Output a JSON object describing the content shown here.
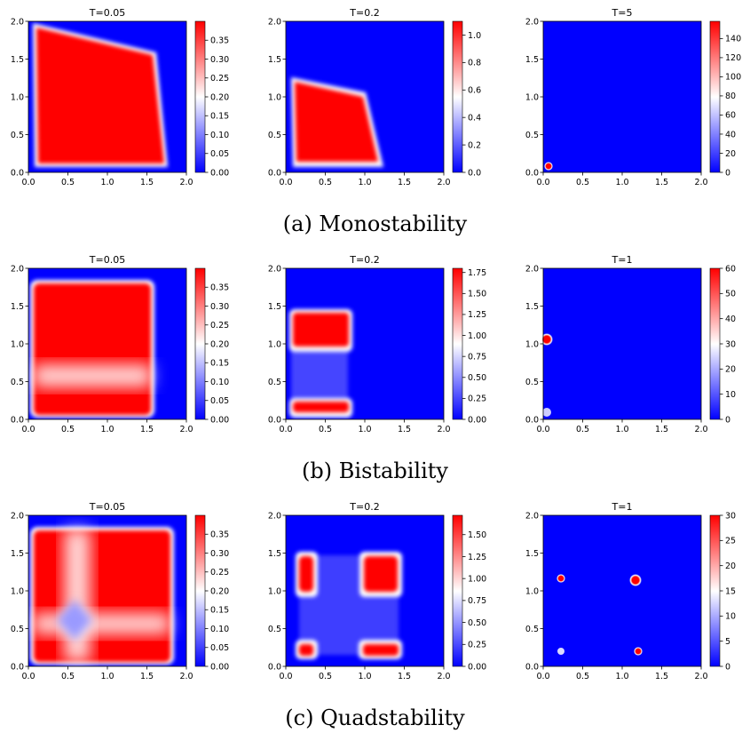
{
  "colors": {
    "cmap": [
      "#0000ff",
      "#ffffff",
      "#ff0000"
    ],
    "axis": "#000000"
  },
  "rows": [
    {
      "caption": "(a) Monostability",
      "panels": [
        {
          "title": "T=0.05",
          "cbar_ticks": [
            "0.00",
            "0.05",
            "0.10",
            "0.15",
            "0.20",
            "0.25",
            "0.30",
            "0.35"
          ],
          "cbar_values": [
            0,
            0.05,
            0.1,
            0.15,
            0.2,
            0.25,
            0.3,
            0.35
          ],
          "vmax": 0.4
        },
        {
          "title": "T=0.2",
          "cbar_ticks": [
            "0.0",
            "0.2",
            "0.4",
            "0.6",
            "0.8",
            "1.0"
          ],
          "cbar_values": [
            0,
            0.2,
            0.4,
            0.6,
            0.8,
            1.0
          ],
          "vmax": 1.1
        },
        {
          "title": "T=5",
          "cbar_ticks": [
            "0",
            "20",
            "40",
            "60",
            "80",
            "100",
            "120",
            "140"
          ],
          "cbar_values": [
            0,
            20,
            40,
            60,
            80,
            100,
            120,
            140
          ],
          "vmax": 158
        }
      ]
    },
    {
      "caption": "(b) Bistability",
      "panels": [
        {
          "title": "T=0.05",
          "cbar_ticks": [
            "0.00",
            "0.05",
            "0.10",
            "0.15",
            "0.20",
            "0.25",
            "0.30",
            "0.35"
          ],
          "cbar_values": [
            0,
            0.05,
            0.1,
            0.15,
            0.2,
            0.25,
            0.3,
            0.35
          ],
          "vmax": 0.4
        },
        {
          "title": "T=0.2",
          "cbar_ticks": [
            "0.00",
            "0.25",
            "0.50",
            "0.75",
            "1.00",
            "1.25",
            "1.50",
            "1.75"
          ],
          "cbar_values": [
            0,
            0.25,
            0.5,
            0.75,
            1.0,
            1.25,
            1.5,
            1.75
          ],
          "vmax": 1.8
        },
        {
          "title": "T=1",
          "cbar_ticks": [
            "0",
            "10",
            "20",
            "30",
            "40",
            "50",
            "60"
          ],
          "cbar_values": [
            0,
            10,
            20,
            30,
            40,
            50,
            60
          ],
          "vmax": 60
        }
      ]
    },
    {
      "caption": "(c) Quadstability",
      "panels": [
        {
          "title": "T=0.05",
          "cbar_ticks": [
            "0.00",
            "0.05",
            "0.10",
            "0.15",
            "0.20",
            "0.25",
            "0.30",
            "0.35"
          ],
          "cbar_values": [
            0,
            0.05,
            0.1,
            0.15,
            0.2,
            0.25,
            0.3,
            0.35
          ],
          "vmax": 0.4
        },
        {
          "title": "T=0.2",
          "cbar_ticks": [
            "0.00",
            "0.25",
            "0.50",
            "0.75",
            "1.00",
            "1.25",
            "1.50"
          ],
          "cbar_values": [
            0,
            0.25,
            0.5,
            0.75,
            1.0,
            1.25,
            1.5
          ],
          "vmax": 1.72
        },
        {
          "title": "T=1",
          "cbar_ticks": [
            "0",
            "5",
            "10",
            "15",
            "20",
            "25",
            "30"
          ],
          "cbar_values": [
            0,
            5,
            10,
            15,
            20,
            25,
            30
          ],
          "vmax": 30
        }
      ]
    }
  ],
  "chart_data": [
    {
      "type": "heatmap",
      "title": "T=0.05",
      "xlim": [
        0,
        2
      ],
      "ylim": [
        0,
        2
      ],
      "xticks": [
        "0.0",
        "0.5",
        "1.0",
        "1.5",
        "2.0"
      ],
      "yticks": [
        "0.0",
        "0.5",
        "1.0",
        "1.5",
        "2.0"
      ],
      "colorbar_range": [
        0,
        0.4
      ],
      "high_region": {
        "shape": "quadrilateral",
        "corners": [
          [
            0.05,
            1.75
          ],
          [
            1.6,
            1.62
          ],
          [
            1.75,
            0.05
          ],
          [
            0.08,
            0.08
          ]
        ],
        "value": 0.38
      }
    },
    {
      "type": "heatmap",
      "title": "T=0.2",
      "xlim": [
        0,
        2
      ],
      "ylim": [
        0,
        2
      ],
      "xticks": [
        "0.0",
        "0.5",
        "1.0",
        "1.5",
        "2.0"
      ],
      "yticks": [
        "0.0",
        "0.5",
        "1.0",
        "1.5",
        "2.0"
      ],
      "colorbar_range": [
        0,
        1.1
      ],
      "high_region": {
        "shape": "quadrilateral",
        "corners": [
          [
            0.08,
            1.25
          ],
          [
            1.0,
            1.05
          ],
          [
            1.2,
            0.08
          ],
          [
            0.1,
            0.08
          ]
        ],
        "value": 1.05
      }
    },
    {
      "type": "heatmap",
      "title": "T=5",
      "xlim": [
        0,
        2
      ],
      "ylim": [
        0,
        2
      ],
      "xticks": [
        "0.0",
        "0.5",
        "1.0",
        "1.5",
        "2.0"
      ],
      "yticks": [
        "0.0",
        "0.5",
        "1.0",
        "1.5",
        "2.0"
      ],
      "colorbar_range": [
        0,
        158
      ],
      "spots": [
        {
          "x": 0.07,
          "y": 0.08,
          "r": 0.05,
          "value": 155
        }
      ]
    },
    {
      "type": "heatmap",
      "title": "T=0.05",
      "xlim": [
        0,
        2
      ],
      "ylim": [
        0,
        2
      ],
      "xticks": [
        "0.0",
        "0.5",
        "1.0",
        "1.5",
        "2.0"
      ],
      "yticks": [
        "0.0",
        "0.5",
        "1.0",
        "1.5",
        "2.0"
      ],
      "colorbar_range": [
        0,
        0.4
      ],
      "high_region": {
        "shape": "rect",
        "x": [
          0.05,
          1.58
        ],
        "y": [
          0.05,
          1.8
        ],
        "value": 0.38
      },
      "low_band": {
        "y": [
          0.45,
          0.72
        ],
        "value": 0.2
      }
    },
    {
      "type": "heatmap",
      "title": "T=0.2",
      "xlim": [
        0,
        2
      ],
      "ylim": [
        0,
        2
      ],
      "xticks": [
        "0.0",
        "0.5",
        "1.0",
        "1.5",
        "2.0"
      ],
      "yticks": [
        "0.0",
        "0.5",
        "1.0",
        "1.5",
        "2.0"
      ],
      "colorbar_range": [
        0,
        1.8
      ],
      "high_regions": [
        {
          "x": [
            0.08,
            0.78
          ],
          "y": [
            0.95,
            1.42
          ],
          "value": 1.75
        },
        {
          "x": [
            0.08,
            0.78
          ],
          "y": [
            0.06,
            0.28
          ],
          "value": 1.75
        }
      ],
      "faint_region": {
        "x": [
          0.08,
          0.78
        ],
        "y": [
          0.28,
          0.95
        ],
        "value": 0.35
      }
    },
    {
      "type": "heatmap",
      "title": "T=1",
      "xlim": [
        0,
        2
      ],
      "ylim": [
        0,
        2
      ],
      "xticks": [
        "0.0",
        "0.5",
        "1.0",
        "1.5",
        "2.0"
      ],
      "yticks": [
        "0.0",
        "0.5",
        "1.0",
        "1.5",
        "2.0"
      ],
      "colorbar_range": [
        0,
        60
      ],
      "spots": [
        {
          "x": 0.05,
          "y": 1.06,
          "r": 0.07,
          "value": 60
        },
        {
          "x": 0.05,
          "y": 0.1,
          "r": 0.05,
          "value": 30
        }
      ]
    },
    {
      "type": "heatmap",
      "title": "T=0.05",
      "xlim": [
        0,
        2
      ],
      "ylim": [
        0,
        2
      ],
      "xticks": [
        "0.0",
        "0.5",
        "1.0",
        "1.5",
        "2.0"
      ],
      "yticks": [
        "0.0",
        "0.5",
        "1.0",
        "1.5",
        "2.0"
      ],
      "colorbar_range": [
        0,
        0.4
      ],
      "high_region": {
        "shape": "rect",
        "x": [
          0.05,
          1.85
        ],
        "y": [
          0.05,
          1.82
        ],
        "value": 0.38
      },
      "low_band_x": {
        "x": [
          0.45,
          0.8
        ],
        "value": 0.2
      },
      "low_band_y": {
        "y": [
          0.45,
          0.72
        ],
        "value": 0.2
      },
      "low_spot": {
        "x": 0.6,
        "y": 0.6,
        "value": 0.1
      }
    },
    {
      "type": "heatmap",
      "title": "T=0.2",
      "xlim": [
        0,
        2
      ],
      "ylim": [
        0,
        2
      ],
      "xticks": [
        "0.0",
        "0.5",
        "1.0",
        "1.5",
        "2.0"
      ],
      "yticks": [
        "0.0",
        "0.5",
        "1.0",
        "1.5",
        "2.0"
      ],
      "colorbar_range": [
        0,
        1.72
      ],
      "high_regions": [
        {
          "x": [
            0.15,
            0.38
          ],
          "y": [
            0.95,
            1.48
          ],
          "value": 1.6
        },
        {
          "x": [
            1.0,
            1.48
          ],
          "y": [
            0.95,
            1.48
          ],
          "value": 1.6
        },
        {
          "x": [
            0.15,
            0.38
          ],
          "y": [
            0.12,
            0.28
          ],
          "value": 1.6
        },
        {
          "x": [
            0.98,
            1.48
          ],
          "y": [
            0.12,
            0.28
          ],
          "value": 1.6
        }
      ],
      "faint_region": {
        "x": [
          0.15,
          1.48
        ],
        "y": [
          0.12,
          1.48
        ],
        "value": 0.3
      }
    },
    {
      "type": "heatmap",
      "title": "T=1",
      "xlim": [
        0,
        2
      ],
      "ylim": [
        0,
        2
      ],
      "xticks": [
        "0.0",
        "0.5",
        "1.0",
        "1.5",
        "2.0"
      ],
      "yticks": [
        "0.0",
        "0.5",
        "1.0",
        "1.5",
        "2.0"
      ],
      "colorbar_range": [
        0,
        30
      ],
      "spots": [
        {
          "x": 0.2,
          "y": 1.17,
          "r": 0.05,
          "value": 25
        },
        {
          "x": 1.13,
          "y": 1.14,
          "r": 0.07,
          "value": 30
        },
        {
          "x": 0.2,
          "y": 0.19,
          "r": 0.04,
          "value": 15
        },
        {
          "x": 1.17,
          "y": 0.19,
          "r": 0.05,
          "value": 25
        }
      ]
    }
  ]
}
